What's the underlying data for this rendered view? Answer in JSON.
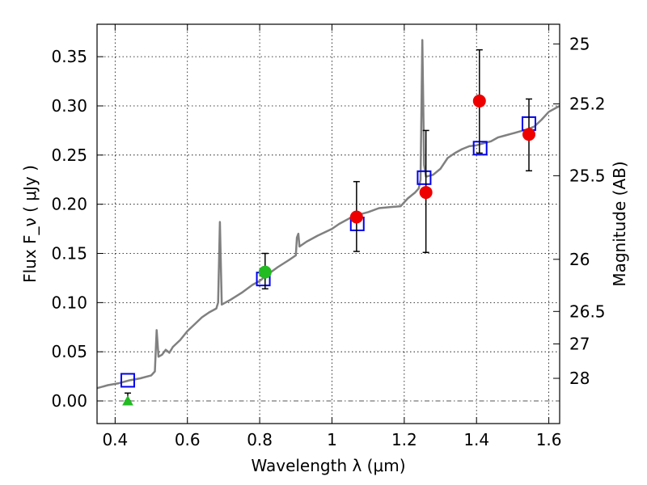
{
  "chart_data": {
    "type": "scatter",
    "xlabel": "Wavelength  λ (μm)",
    "ylabel": "Flux  F_ν  ( μJy )",
    "ylabel_right": "Magnitude (AB)",
    "xlim": [
      0.35,
      1.63
    ],
    "ylim": [
      -0.023,
      0.383
    ],
    "grid": true,
    "x_ticks": [
      0.4,
      0.6,
      0.8,
      1.0,
      1.2,
      1.4,
      1.6
    ],
    "x_tick_labels": [
      "0.4",
      "0.6",
      "0.8",
      "1",
      "1.2",
      "1.4",
      "1.6"
    ],
    "y_ticks": [
      0.0,
      0.05,
      0.1,
      0.15,
      0.2,
      0.25,
      0.3,
      0.35
    ],
    "y_tick_labels": [
      "0.00",
      "0.05",
      "0.10",
      "0.15",
      "0.20",
      "0.25",
      "0.30",
      "0.35"
    ],
    "right_axis_ticks": [
      {
        "label": "25",
        "flux": 0.363
      },
      {
        "label": "25.2",
        "flux": 0.302
      },
      {
        "label": "25.5",
        "flux": 0.229
      },
      {
        "label": "26",
        "flux": 0.144
      },
      {
        "label": "26.5",
        "flux": 0.091
      },
      {
        "label": "27",
        "flux": 0.058
      },
      {
        "label": "28",
        "flux": 0.023
      }
    ],
    "zero_line": 0.0,
    "template_spectrum": {
      "color": "#808080",
      "points": [
        [
          0.35,
          0.013
        ],
        [
          0.38,
          0.016
        ],
        [
          0.41,
          0.018
        ],
        [
          0.44,
          0.021
        ],
        [
          0.47,
          0.023
        ],
        [
          0.5,
          0.026
        ],
        [
          0.51,
          0.03
        ],
        [
          0.515,
          0.072
        ],
        [
          0.52,
          0.045
        ],
        [
          0.53,
          0.047
        ],
        [
          0.54,
          0.052
        ],
        [
          0.55,
          0.049
        ],
        [
          0.56,
          0.055
        ],
        [
          0.58,
          0.062
        ],
        [
          0.6,
          0.071
        ],
        [
          0.62,
          0.078
        ],
        [
          0.64,
          0.085
        ],
        [
          0.66,
          0.09
        ],
        [
          0.68,
          0.094
        ],
        [
          0.685,
          0.1
        ],
        [
          0.69,
          0.182
        ],
        [
          0.695,
          0.098
        ],
        [
          0.72,
          0.103
        ],
        [
          0.75,
          0.11
        ],
        [
          0.78,
          0.118
        ],
        [
          0.8,
          0.122
        ],
        [
          0.82,
          0.128
        ],
        [
          0.85,
          0.136
        ],
        [
          0.88,
          0.143
        ],
        [
          0.9,
          0.148
        ],
        [
          0.903,
          0.166
        ],
        [
          0.907,
          0.17
        ],
        [
          0.91,
          0.157
        ],
        [
          0.93,
          0.162
        ],
        [
          0.96,
          0.168
        ],
        [
          1.0,
          0.175
        ],
        [
          1.02,
          0.18
        ],
        [
          1.05,
          0.186
        ],
        [
          1.08,
          0.19
        ],
        [
          1.1,
          0.192
        ],
        [
          1.13,
          0.196
        ],
        [
          1.16,
          0.197
        ],
        [
          1.19,
          0.198
        ],
        [
          1.21,
          0.206
        ],
        [
          1.23,
          0.212
        ],
        [
          1.24,
          0.216
        ],
        [
          1.245,
          0.225
        ],
        [
          1.25,
          0.367
        ],
        [
          1.255,
          0.24
        ],
        [
          1.26,
          0.228
        ],
        [
          1.28,
          0.23
        ],
        [
          1.3,
          0.236
        ],
        [
          1.32,
          0.247
        ],
        [
          1.34,
          0.252
        ],
        [
          1.36,
          0.256
        ],
        [
          1.38,
          0.259
        ],
        [
          1.4,
          0.26
        ],
        [
          1.42,
          0.262
        ],
        [
          1.44,
          0.264
        ],
        [
          1.46,
          0.268
        ],
        [
          1.48,
          0.27
        ],
        [
          1.5,
          0.272
        ],
        [
          1.52,
          0.274
        ],
        [
          1.54,
          0.276
        ],
        [
          1.56,
          0.279
        ],
        [
          1.58,
          0.286
        ],
        [
          1.6,
          0.294
        ],
        [
          1.63,
          0.3
        ]
      ]
    },
    "model_fluxes": {
      "marker": "open-square",
      "color": "#0000ee",
      "points": [
        [
          0.435,
          0.021
        ],
        [
          0.81,
          0.124
        ],
        [
          1.07,
          0.18
        ],
        [
          1.255,
          0.227
        ],
        [
          1.41,
          0.257
        ],
        [
          1.545,
          0.282
        ]
      ]
    },
    "observed": {
      "marker": "circle",
      "color": "#ee0000",
      "points": [
        {
          "x": 1.068,
          "y": 0.187,
          "err_lo": 0.152,
          "err_hi": 0.223
        },
        {
          "x": 1.26,
          "y": 0.212,
          "err_lo": 0.151,
          "err_hi": 0.275
        },
        {
          "x": 1.408,
          "y": 0.305,
          "err_lo": 0.252,
          "err_hi": 0.357
        },
        {
          "x": 1.545,
          "y": 0.271,
          "err_lo": 0.234,
          "err_hi": 0.307
        }
      ]
    },
    "observed_optical": {
      "marker": "circle",
      "color": "#22bb22",
      "points": [
        {
          "x": 0.815,
          "y": 0.131,
          "err_lo": 0.114,
          "err_hi": 0.15
        }
      ]
    },
    "upper_limit": {
      "marker": "triangle",
      "color": "#22bb22",
      "points": [
        {
          "x": 0.435,
          "y": 0.0,
          "err_lo": 0.0,
          "err_hi": 0.008
        }
      ]
    }
  }
}
